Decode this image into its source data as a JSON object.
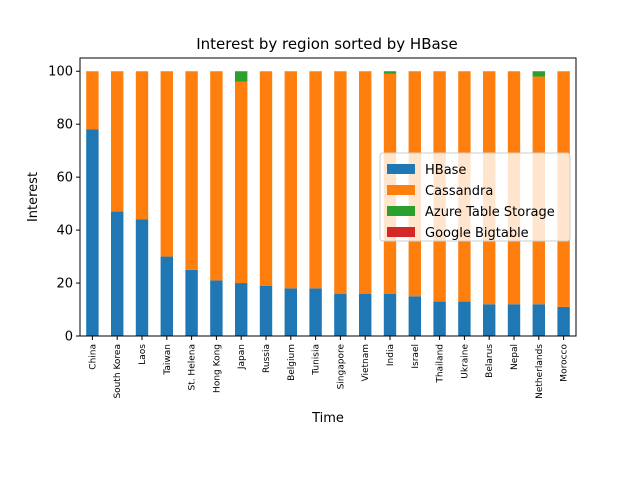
{
  "chart_data": {
    "type": "bar",
    "stacked": true,
    "title": "Interest by region sorted by HBase",
    "xlabel": "Time",
    "ylabel": "Interest",
    "ylim": [
      0,
      105
    ],
    "yticks": [
      0,
      20,
      40,
      60,
      80,
      100
    ],
    "grid": false,
    "legend_position": "center-right",
    "categories": [
      "China",
      "South Korea",
      "Laos",
      "Taiwan",
      "St. Helena",
      "Hong Kong",
      "Japan",
      "Russia",
      "Belgium",
      "Tunisia",
      "Singapore",
      "Vietnam",
      "India",
      "Israel",
      "Thailand",
      "Ukraine",
      "Belarus",
      "Nepal",
      "Netherlands",
      "Morocco"
    ],
    "series": [
      {
        "name": "HBase",
        "color": "#1f77b4",
        "values": [
          78,
          47,
          44,
          30,
          25,
          21,
          20,
          19,
          18,
          18,
          16,
          16,
          16,
          15,
          13,
          13,
          12,
          12,
          12,
          11
        ]
      },
      {
        "name": "Cassandra",
        "color": "#ff7f0e",
        "values": [
          22,
          53,
          56,
          70,
          75,
          79,
          76,
          81,
          82,
          82,
          84,
          84,
          83,
          85,
          87,
          87,
          88,
          88,
          86,
          89
        ]
      },
      {
        "name": "Azure Table Storage",
        "color": "#2ca02c",
        "values": [
          0,
          0,
          0,
          0,
          0,
          0,
          4,
          0,
          0,
          0,
          0,
          0,
          1,
          0,
          0,
          0,
          0,
          0,
          2,
          0
        ]
      },
      {
        "name": "Google Bigtable",
        "color": "#d62728",
        "values": [
          0,
          0,
          0,
          0,
          0,
          0,
          0,
          0,
          0,
          0,
          0,
          0,
          0,
          0,
          0,
          0,
          0,
          0,
          0,
          0
        ]
      }
    ]
  }
}
